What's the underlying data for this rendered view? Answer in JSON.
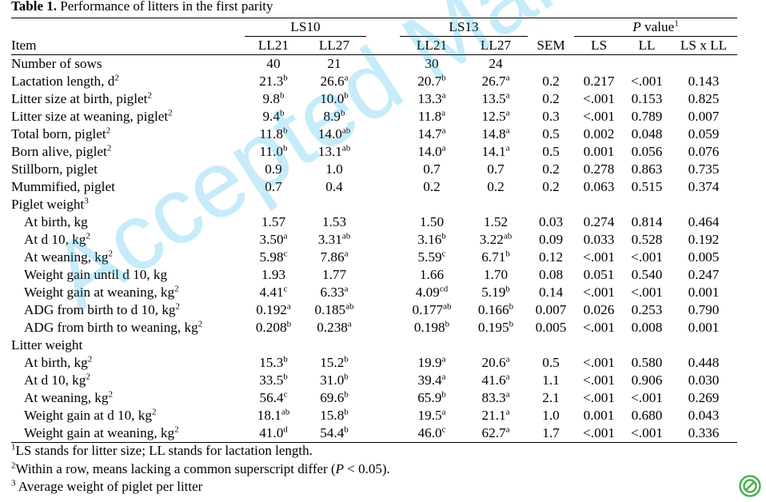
{
  "caption": {
    "label": "Table 1.",
    "text": " Performance of litters in the first parity"
  },
  "headers": {
    "ls10": "LS10",
    "ls13": "LS13",
    "pvalue_p": "P",
    "pvalue_rest": " value",
    "pvalue_sup": "1",
    "item": "Item",
    "ll21a": "LL21",
    "ll27a": "LL27",
    "ll21b": "LL21",
    "ll27b": "LL27",
    "sem": "SEM",
    "ls": "LS",
    "ll": "LL",
    "lsxll": "LS x LL"
  },
  "rows": [
    {
      "item": "Number of sows",
      "sup": "",
      "indent": false,
      "values": [
        [
          "40",
          ""
        ],
        [
          "21",
          ""
        ],
        [
          "30",
          ""
        ],
        [
          "24",
          ""
        ]
      ],
      "sem": "",
      "p": [
        "",
        "",
        ""
      ]
    },
    {
      "item": "Lactation length, d",
      "sup": "2",
      "indent": false,
      "values": [
        [
          "21.3",
          "b"
        ],
        [
          "26.6",
          "a"
        ],
        [
          "20.7",
          "b"
        ],
        [
          "26.7",
          "a"
        ]
      ],
      "sem": "0.2",
      "p": [
        "0.217",
        "<.001",
        "0.143"
      ]
    },
    {
      "item": "Litter size at birth, piglet",
      "sup": "2",
      "indent": false,
      "values": [
        [
          "9.8",
          "b"
        ],
        [
          "10.0",
          "b"
        ],
        [
          "13.3",
          "a"
        ],
        [
          "13.5",
          "a"
        ]
      ],
      "sem": "0.2",
      "p": [
        "<.001",
        "0.153",
        "0.825"
      ]
    },
    {
      "item": "Litter size at weaning, piglet",
      "sup": "2",
      "indent": false,
      "values": [
        [
          "9.4",
          "b"
        ],
        [
          "8.9",
          "b"
        ],
        [
          "11.8",
          "a"
        ],
        [
          "12.5",
          "a"
        ]
      ],
      "sem": "0.3",
      "p": [
        "<.001",
        "0.789",
        "0.007"
      ]
    },
    {
      "item": "Total born, piglet",
      "sup": "2",
      "indent": false,
      "values": [
        [
          "11.8",
          "b"
        ],
        [
          "14.0",
          "ab"
        ],
        [
          "14.7",
          "a"
        ],
        [
          "14.8",
          "a"
        ]
      ],
      "sem": "0.5",
      "p": [
        "0.002",
        "0.048",
        "0.059"
      ]
    },
    {
      "item": "Born alive, piglet",
      "sup": "2",
      "indent": false,
      "values": [
        [
          "11.0",
          "b"
        ],
        [
          "13.1",
          "ab"
        ],
        [
          "14.0",
          "a"
        ],
        [
          "14.1",
          "a"
        ]
      ],
      "sem": "0.5",
      "p": [
        "0.001",
        "0.056",
        "0.076"
      ]
    },
    {
      "item": "Stillborn, piglet",
      "sup": "",
      "indent": false,
      "values": [
        [
          "0.9",
          ""
        ],
        [
          "1.0",
          ""
        ],
        [
          "0.7",
          ""
        ],
        [
          "0.7",
          ""
        ]
      ],
      "sem": "0.2",
      "p": [
        "0.278",
        "0.863",
        "0.735"
      ]
    },
    {
      "item": "Mummified, piglet",
      "sup": "",
      "indent": false,
      "values": [
        [
          "0.7",
          ""
        ],
        [
          "0.4",
          ""
        ],
        [
          "0.2",
          ""
        ],
        [
          "0.2",
          ""
        ]
      ],
      "sem": "0.2",
      "p": [
        "0.063",
        "0.515",
        "0.374"
      ]
    },
    {
      "item": "Piglet weight",
      "sup": "3",
      "indent": false,
      "values": [
        [
          "",
          ""
        ],
        [
          "",
          ""
        ],
        [
          "",
          ""
        ],
        [
          "",
          ""
        ]
      ],
      "sem": "",
      "p": [
        "",
        "",
        ""
      ]
    },
    {
      "item": "At birth, kg",
      "sup": "",
      "indent": true,
      "values": [
        [
          "1.57",
          ""
        ],
        [
          "1.53",
          ""
        ],
        [
          "1.50",
          ""
        ],
        [
          "1.52",
          ""
        ]
      ],
      "sem": "0.03",
      "p": [
        "0.274",
        "0.814",
        "0.464"
      ]
    },
    {
      "item": "At d 10, kg",
      "sup": "2",
      "indent": true,
      "values": [
        [
          "3.50",
          "a"
        ],
        [
          "3.31",
          "ab"
        ],
        [
          "3.16",
          "b"
        ],
        [
          "3.22",
          "ab"
        ]
      ],
      "sem": "0.09",
      "p": [
        "0.033",
        "0.528",
        "0.192"
      ]
    },
    {
      "item": "At weaning, kg",
      "sup": "2",
      "indent": true,
      "values": [
        [
          "5.98",
          "c"
        ],
        [
          "7.86",
          "a"
        ],
        [
          "5.59",
          "c"
        ],
        [
          "6.71",
          "b"
        ]
      ],
      "sem": "0.12",
      "p": [
        "<.001",
        "<.001",
        "0.005"
      ]
    },
    {
      "item": "Weight gain until d 10, kg",
      "sup": "",
      "indent": true,
      "values": [
        [
          "1.93",
          ""
        ],
        [
          "1.77",
          ""
        ],
        [
          "1.66",
          ""
        ],
        [
          "1.70",
          ""
        ]
      ],
      "sem": "0.08",
      "p": [
        "0.051",
        "0.540",
        "0.247"
      ]
    },
    {
      "item": "Weight gain at weaning, kg",
      "sup": "2",
      "indent": true,
      "values": [
        [
          "4.41",
          "c"
        ],
        [
          "6.33",
          "a"
        ],
        [
          "4.09",
          "cd"
        ],
        [
          "5.19",
          "b"
        ]
      ],
      "sem": "0.14",
      "p": [
        "<.001",
        "<.001",
        "0.001"
      ]
    },
    {
      "item": "ADG from birth to d 10, kg",
      "sup": "2",
      "indent": true,
      "values": [
        [
          "0.192",
          "a"
        ],
        [
          "0.185",
          "ab"
        ],
        [
          "0.177",
          "ab"
        ],
        [
          "0.166",
          "b"
        ]
      ],
      "sem": "0.007",
      "p": [
        "0.026",
        "0.253",
        "0.790"
      ]
    },
    {
      "item": "ADG from birth to weaning, kg",
      "sup": "2",
      "indent": true,
      "values": [
        [
          "0.208",
          "b"
        ],
        [
          "0.238",
          "a"
        ],
        [
          "0.198",
          "b"
        ],
        [
          "0.195",
          "b"
        ]
      ],
      "sem": "0.005",
      "p": [
        "<.001",
        "0.008",
        "0.001"
      ]
    },
    {
      "item": "Litter weight",
      "sup": "",
      "indent": false,
      "values": [
        [
          "",
          ""
        ],
        [
          "",
          ""
        ],
        [
          "",
          ""
        ],
        [
          "",
          ""
        ]
      ],
      "sem": "",
      "p": [
        "",
        "",
        ""
      ]
    },
    {
      "item": "At birth, kg",
      "sup": "2",
      "indent": true,
      "values": [
        [
          "15.3",
          "b"
        ],
        [
          "15.2",
          "b"
        ],
        [
          "19.9",
          "a"
        ],
        [
          "20.6",
          "a"
        ]
      ],
      "sem": "0.5",
      "p": [
        "<.001",
        "0.580",
        "0.448"
      ]
    },
    {
      "item": "At d 10, kg",
      "sup": "2",
      "indent": true,
      "values": [
        [
          "33.5",
          "b"
        ],
        [
          "31.0",
          "b"
        ],
        [
          "39.4",
          "a"
        ],
        [
          "41.6",
          "a"
        ]
      ],
      "sem": "1.1",
      "p": [
        "<.001",
        "0.906",
        "0.030"
      ]
    },
    {
      "item": "At weaning, kg",
      "sup": "2",
      "indent": true,
      "values": [
        [
          "56.4",
          "c"
        ],
        [
          "69.6",
          "b"
        ],
        [
          "65.9",
          "b"
        ],
        [
          "83.3",
          "a"
        ]
      ],
      "sem": "2.1",
      "p": [
        "<.001",
        "<.001",
        "0.269"
      ]
    },
    {
      "item": "Weight gain at d 10, kg",
      "sup": "2",
      "indent": true,
      "values": [
        [
          "18.1",
          "ab"
        ],
        [
          "15.8",
          "b"
        ],
        [
          "19.5",
          "a"
        ],
        [
          "21.1",
          "a"
        ]
      ],
      "sem": "1.0",
      "p": [
        "0.001",
        "0.680",
        "0.043"
      ]
    },
    {
      "item": "Weight gain at weaning, kg",
      "sup": "2",
      "indent": true,
      "values": [
        [
          "41.0",
          "d"
        ],
        [
          "54.4",
          "b"
        ],
        [
          "46.0",
          "c"
        ],
        [
          "62.7",
          "a"
        ]
      ],
      "sem": "1.7",
      "p": [
        "<.001",
        "<.001",
        "0.336"
      ]
    }
  ],
  "footnotes": [
    {
      "sup": "1",
      "text": "LS stands for litter size; LL stands for lactation length."
    },
    {
      "sup": "2",
      "text": "Within a row, means lacking a common superscript differ (",
      "italic": "P",
      "after": " < 0.05)."
    },
    {
      "sup": "3",
      "text": " Average weight of piglet per litter"
    }
  ],
  "watermark": "Accepted Manuscript",
  "colors": {
    "watermark": "#00a8e8",
    "logo": "#4caf50"
  },
  "icons": {
    "logo": "publisher-logo-icon"
  }
}
